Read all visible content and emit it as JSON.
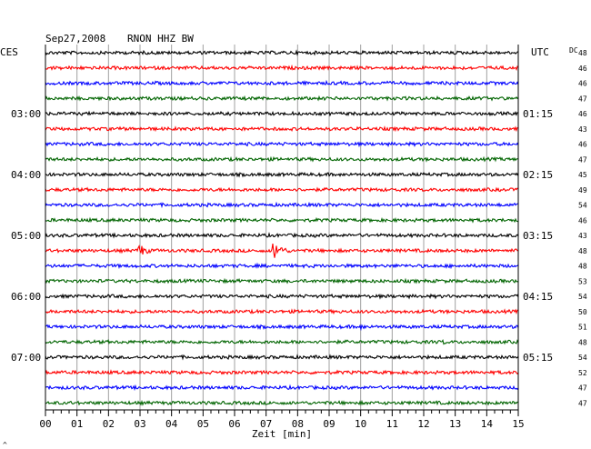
{
  "header": {
    "date": "Sep27,2008",
    "station": "RNON HHZ BW",
    "left_timezone": "CES",
    "right_timezone": "UTC",
    "dc_label": "DC"
  },
  "footer": {
    "xlabel": "Zeit [min]",
    "corner_mark": "^"
  },
  "colors": {
    "trace_cycle": [
      "#000000",
      "#ff0000",
      "#0000ff",
      "#006400"
    ],
    "grid": "#a0a0a0",
    "frame": "#000000"
  },
  "chart_data": {
    "type": "line",
    "title": "Sep27,2008 RNON HHZ BW",
    "xlabel": "Zeit [min]",
    "ylabel": "",
    "xlim": [
      0,
      15
    ],
    "x_tick_labels": [
      "00",
      "01",
      "02",
      "03",
      "04",
      "05",
      "06",
      "07",
      "08",
      "09",
      "10",
      "11",
      "12",
      "13",
      "14",
      "15"
    ],
    "minor_ticks_per_minute": 4,
    "grid": true,
    "trace_count": 24,
    "left_hour_labels": [
      {
        "trace_index": 4,
        "label": "03:00"
      },
      {
        "trace_index": 8,
        "label": "04:00"
      },
      {
        "trace_index": 12,
        "label": "05:00"
      },
      {
        "trace_index": 16,
        "label": "06:00"
      },
      {
        "trace_index": 20,
        "label": "07:00"
      }
    ],
    "right_hour_labels": [
      {
        "trace_index": 4,
        "label": "01:15"
      },
      {
        "trace_index": 8,
        "label": "02:15"
      },
      {
        "trace_index": 12,
        "label": "03:15"
      },
      {
        "trace_index": 16,
        "label": "04:15"
      },
      {
        "trace_index": 20,
        "label": "05:15"
      }
    ],
    "dc_offsets": [
      48,
      46,
      46,
      47,
      46,
      43,
      46,
      47,
      45,
      49,
      54,
      46,
      43,
      48,
      48,
      53,
      54,
      50,
      51,
      48,
      54,
      52,
      47,
      47
    ],
    "events": [
      {
        "trace_index": 13,
        "minute": 3.0,
        "amplitude": "medium"
      },
      {
        "trace_index": 13,
        "minute": 7.25,
        "amplitude": "large"
      },
      {
        "trace_index": 18,
        "minute": 10.0,
        "amplitude": "small"
      },
      {
        "trace_index": 19,
        "minute": 12.6,
        "amplitude": "small"
      }
    ]
  }
}
